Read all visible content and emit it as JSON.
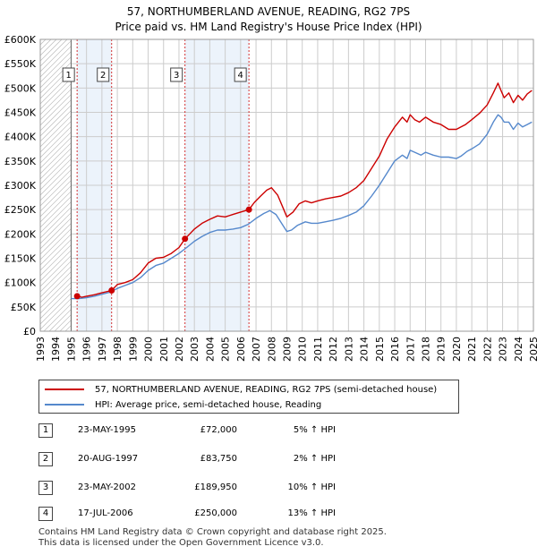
{
  "title_line1": "57, NORTHUMBERLAND AVENUE, READING, RG2 7PS",
  "title_line2": "Price paid vs. HM Land Registry's House Price Index (HPI)",
  "legend": {
    "property_label": "57, NORTHUMBERLAND AVENUE, READING, RG2 7PS (semi-detached house)",
    "hpi_label": "HPI: Average price, semi-detached house, Reading"
  },
  "colors": {
    "property": "#cc0000",
    "hpi": "#5588cc",
    "grid": "#cccccc",
    "shade": "#ddeaf7",
    "hatch": "#bbbbbb"
  },
  "sales": [
    {
      "num": "1",
      "date": "23-MAY-1995",
      "price": "£72,000",
      "hpi": "5% ↑ HPI"
    },
    {
      "num": "2",
      "date": "20-AUG-1997",
      "price": "£83,750",
      "hpi": "2% ↑ HPI"
    },
    {
      "num": "3",
      "date": "23-MAY-2002",
      "price": "£189,950",
      "hpi": "10% ↑ HPI"
    },
    {
      "num": "4",
      "date": "17-JUL-2006",
      "price": "£250,000",
      "hpi": "13% ↑ HPI"
    }
  ],
  "footer": {
    "line1": "Contains HM Land Registry data © Crown copyright and database right 2025.",
    "line2": "This data is licensed under the Open Government Licence v3.0."
  },
  "chart_data": {
    "type": "line",
    "title": "57, NORTHUMBERLAND AVENUE, READING, RG2 7PS",
    "subtitle": "Price paid vs. HM Land Registry's House Price Index (HPI)",
    "xlim": [
      1993,
      2025
    ],
    "ylim": [
      0,
      600000
    ],
    "x_ticks": [
      1993,
      1994,
      1995,
      1996,
      1997,
      1998,
      1999,
      2000,
      2001,
      2002,
      2003,
      2004,
      2005,
      2006,
      2007,
      2008,
      2009,
      2010,
      2011,
      2012,
      2013,
      2014,
      2015,
      2016,
      2017,
      2018,
      2019,
      2020,
      2021,
      2022,
      2023,
      2024,
      2025
    ],
    "y_ticks": [
      0,
      50000,
      100000,
      150000,
      200000,
      250000,
      300000,
      350000,
      400000,
      450000,
      500000,
      550000,
      600000
    ],
    "y_tick_labels": [
      "£0",
      "£50K",
      "£100K",
      "£150K",
      "£200K",
      "£250K",
      "£300K",
      "£350K",
      "£400K",
      "£450K",
      "£500K",
      "£550K",
      "£600K"
    ],
    "grid": true,
    "pre_data_hatch_until": 1995.0,
    "sale_markers": [
      {
        "label": "1",
        "x": 1995.39,
        "y": 72000
      },
      {
        "label": "2",
        "x": 1997.63,
        "y": 83750
      },
      {
        "label": "3",
        "x": 2002.39,
        "y": 189950
      },
      {
        "label": "4",
        "x": 2006.54,
        "y": 250000
      }
    ],
    "series": [
      {
        "name": "57, NORTHUMBERLAND AVENUE, READING, RG2 7PS (semi-detached house)",
        "x": [
          1995.39,
          1995.7,
          1996.0,
          1996.5,
          1997.0,
          1997.63,
          1998.0,
          1998.5,
          1999.0,
          1999.5,
          2000.0,
          2000.5,
          2001.0,
          2001.5,
          2002.0,
          2002.39,
          2002.7,
          2003.0,
          2003.5,
          2004.0,
          2004.5,
          2005.0,
          2005.5,
          2006.0,
          2006.54,
          2006.9,
          2007.3,
          2007.7,
          2008.0,
          2008.4,
          2008.8,
          2009.0,
          2009.4,
          2009.8,
          2010.2,
          2010.6,
          2011.0,
          2011.5,
          2012.0,
          2012.5,
          2013.0,
          2013.5,
          2014.0,
          2014.5,
          2015.0,
          2015.5,
          2016.0,
          2016.5,
          2016.8,
          2017.0,
          2017.3,
          2017.6,
          2018.0,
          2018.5,
          2019.0,
          2019.5,
          2020.0,
          2020.3,
          2020.6,
          2021.0,
          2021.5,
          2022.0,
          2022.4,
          2022.7,
          2022.9,
          2023.1,
          2023.4,
          2023.7,
          2024.0,
          2024.3,
          2024.6,
          2024.9
        ],
        "values": [
          72000,
          70000,
          72000,
          75000,
          79000,
          83750,
          96000,
          100000,
          106000,
          120000,
          140000,
          150000,
          152000,
          160000,
          172000,
          189950,
          200000,
          210000,
          222000,
          230000,
          237000,
          235000,
          240000,
          245000,
          250000,
          265000,
          278000,
          290000,
          295000,
          280000,
          250000,
          235000,
          245000,
          262000,
          268000,
          264000,
          268000,
          272000,
          275000,
          278000,
          285000,
          295000,
          310000,
          335000,
          360000,
          395000,
          420000,
          440000,
          430000,
          445000,
          435000,
          430000,
          440000,
          430000,
          425000,
          415000,
          415000,
          420000,
          425000,
          435000,
          448000,
          465000,
          490000,
          510000,
          495000,
          480000,
          490000,
          470000,
          485000,
          475000,
          488000,
          495000
        ],
        "color": "#cc0000"
      },
      {
        "name": "HPI: Average price, semi-detached house, Reading",
        "x": [
          1995.0,
          1995.5,
          1996.0,
          1996.5,
          1997.0,
          1997.5,
          1998.0,
          1998.5,
          1999.0,
          1999.5,
          2000.0,
          2000.5,
          2001.0,
          2001.5,
          2002.0,
          2002.5,
          2003.0,
          2003.5,
          2004.0,
          2004.5,
          2005.0,
          2005.5,
          2006.0,
          2006.5,
          2007.0,
          2007.5,
          2007.9,
          2008.3,
          2008.7,
          2009.0,
          2009.3,
          2009.7,
          2010.2,
          2010.6,
          2011.0,
          2011.5,
          2012.0,
          2012.5,
          2013.0,
          2013.5,
          2014.0,
          2014.5,
          2015.0,
          2015.5,
          2016.0,
          2016.5,
          2016.8,
          2017.0,
          2017.3,
          2017.7,
          2018.0,
          2018.5,
          2019.0,
          2019.5,
          2020.0,
          2020.3,
          2020.7,
          2021.0,
          2021.5,
          2022.0,
          2022.4,
          2022.7,
          2022.9,
          2023.1,
          2023.4,
          2023.7,
          2024.0,
          2024.3,
          2024.6,
          2024.9
        ],
        "values": [
          67000,
          67000,
          69000,
          72000,
          76000,
          80000,
          88000,
          94000,
          100000,
          110000,
          125000,
          135000,
          140000,
          150000,
          160000,
          172000,
          185000,
          195000,
          203000,
          208000,
          208000,
          210000,
          213000,
          220000,
          232000,
          242000,
          248000,
          240000,
          220000,
          205000,
          208000,
          218000,
          225000,
          222000,
          222000,
          225000,
          228000,
          232000,
          238000,
          245000,
          258000,
          278000,
          300000,
          325000,
          350000,
          362000,
          355000,
          372000,
          368000,
          362000,
          368000,
          362000,
          358000,
          358000,
          355000,
          360000,
          370000,
          375000,
          385000,
          405000,
          430000,
          445000,
          440000,
          430000,
          430000,
          415000,
          428000,
          420000,
          425000,
          430000
        ],
        "color": "#5588cc"
      }
    ]
  }
}
